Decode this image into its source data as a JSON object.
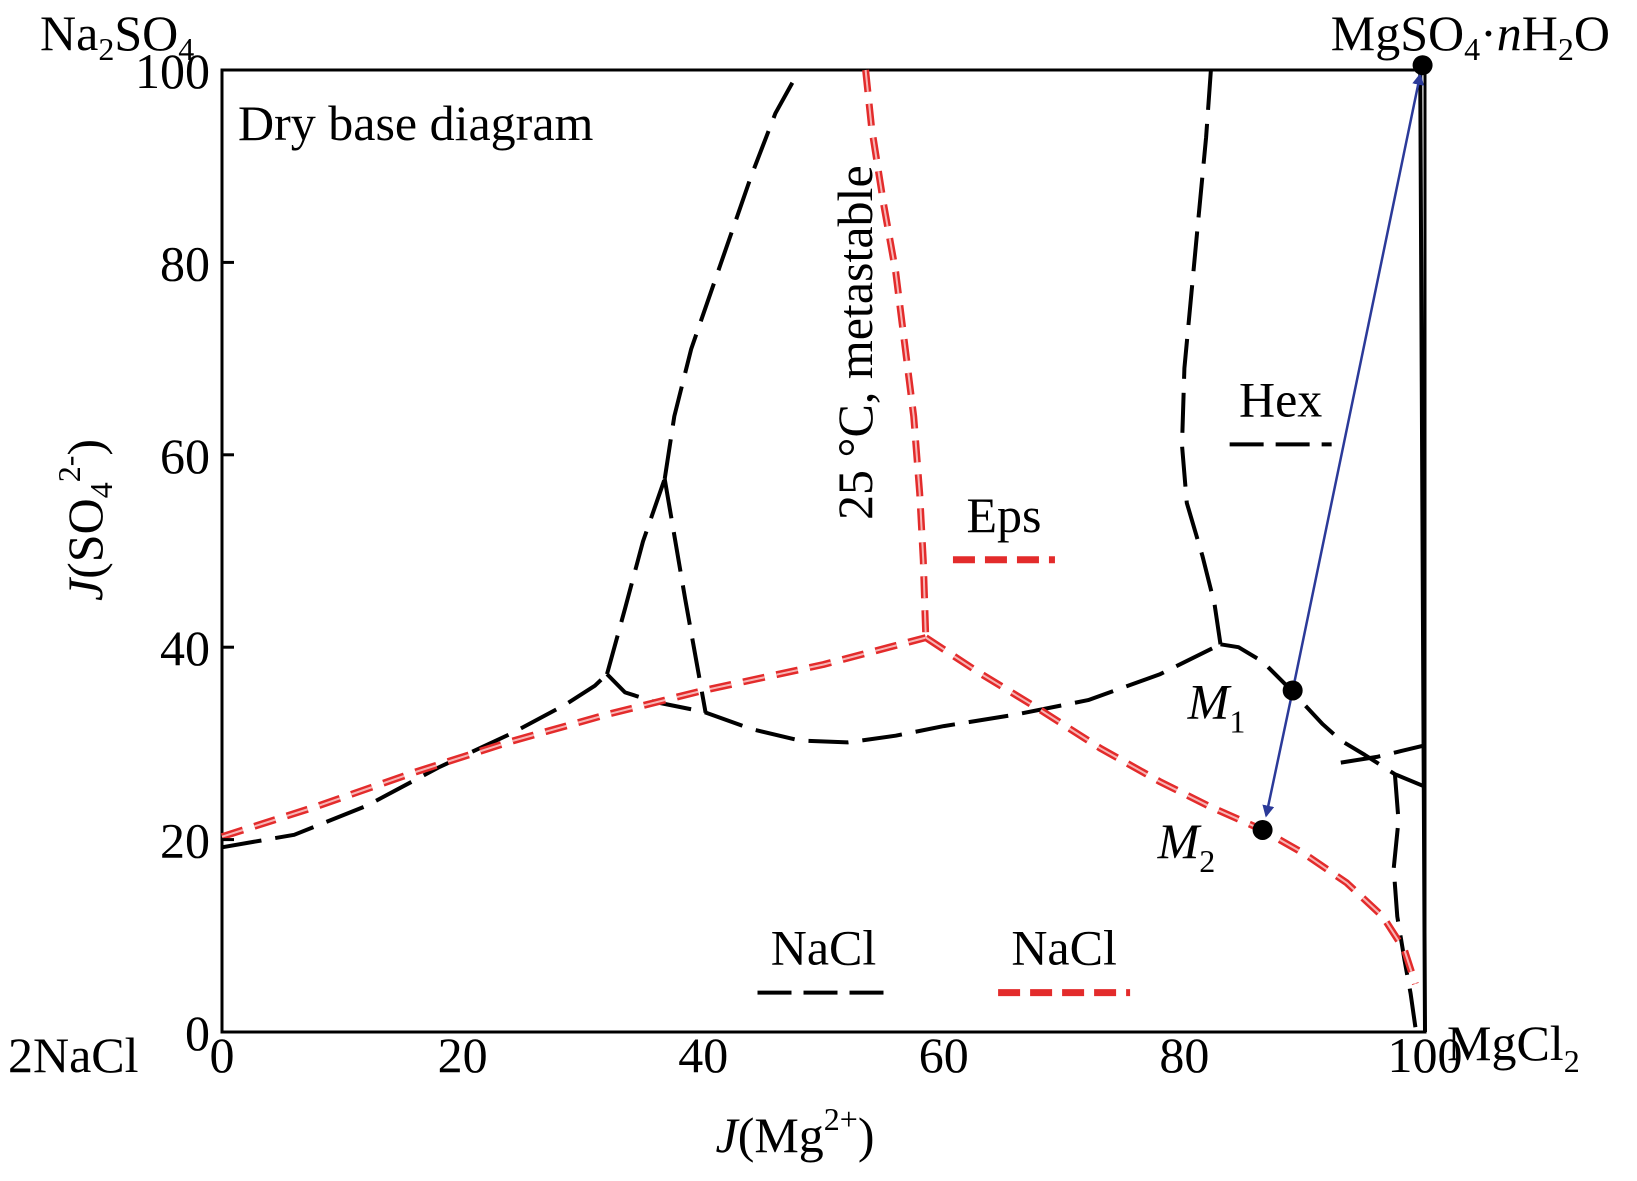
{
  "chart_data": {
    "type": "line",
    "annotation_title": "Dry base diagram",
    "xlabel": {
      "prefix": "J",
      "open": "(Mg",
      "sup": "2+",
      "close": ")"
    },
    "ylabel": {
      "prefix": "J",
      "open": "(SO",
      "sub": "4",
      "sup": "2-",
      "close": ")"
    },
    "xlim": [
      0,
      100
    ],
    "ylim": [
      0,
      100
    ],
    "x_ticks": [
      {
        "value": 0,
        "label": "0"
      },
      {
        "value": 20,
        "label": "20"
      },
      {
        "value": 40,
        "label": "40"
      },
      {
        "value": 60,
        "label": "60"
      },
      {
        "value": 80,
        "label": "80"
      },
      {
        "value": 100,
        "label": "100"
      }
    ],
    "y_ticks": [
      {
        "value": 0,
        "label": "0"
      },
      {
        "value": 20,
        "label": "20"
      },
      {
        "value": 40,
        "label": "40"
      },
      {
        "value": 60,
        "label": "60"
      },
      {
        "value": 80,
        "label": "80"
      },
      {
        "value": 100,
        "label": "100"
      }
    ],
    "corners": {
      "bottom_left": "2NaCl",
      "bottom_right": {
        "main": "MgCl",
        "sub": "2"
      },
      "top_left": {
        "a": "Na",
        "sub1": "2",
        "b": "SO",
        "sub2": "4"
      },
      "top_right": {
        "a": "MgSO",
        "sub1": "4",
        "dot": "·",
        "n": "n",
        "b": "H",
        "sub2": "2",
        "c": "O"
      }
    },
    "rotated_label": "25 °C, metastable",
    "field_labels": [
      {
        "text": "Eps",
        "x": 65,
        "y": 52,
        "color": "#e32b2b"
      },
      {
        "text": "Hex",
        "x": 88,
        "y": 64,
        "color": "#000000"
      },
      {
        "text": "NaCl",
        "x": 50,
        "y": 7,
        "color": "#000000"
      },
      {
        "text": "NaCl",
        "x": 70,
        "y": 7,
        "color": "#e32b2b"
      }
    ],
    "points": [
      {
        "name": "M",
        "sub": "1",
        "x": 89,
        "y": 35.5
      },
      {
        "name": "M",
        "sub": "2",
        "x": 86.5,
        "y": 21
      },
      {
        "name": "",
        "sub": "",
        "x": 99.8,
        "y": 100.5
      }
    ],
    "arrows": [
      {
        "from": [
          89,
          35.5
        ],
        "to": [
          99.6,
          99.5
        ],
        "color": "#2b3a99"
      },
      {
        "from": [
          89,
          35.5
        ],
        "to": [
          86.8,
          22.5
        ],
        "color": "#2b3a99"
      }
    ],
    "series": [
      {
        "style": "black-dashed",
        "color": "#000000",
        "segments": [
          [
            [
              0,
              19.2
            ],
            [
              6,
              20.5
            ],
            [
              12,
              23.5
            ],
            [
              18,
              27.5
            ],
            [
              24,
              31
            ],
            [
              28.5,
              34
            ],
            [
              31,
              36
            ],
            [
              32,
              37.2
            ]
          ],
          [
            [
              32,
              37.2
            ],
            [
              33.5,
              35.3
            ],
            [
              36,
              34.3
            ],
            [
              40,
              33.3
            ],
            [
              44,
              31.5
            ],
            [
              48,
              30.3
            ],
            [
              52,
              30.1
            ],
            [
              56,
              30.8
            ],
            [
              60,
              31.8
            ],
            [
              66,
              33
            ],
            [
              72,
              34.5
            ],
            [
              78,
              37.2
            ],
            [
              83,
              40.3
            ]
          ],
          [
            [
              32,
              37.2
            ],
            [
              33.5,
              44
            ],
            [
              35,
              51
            ],
            [
              36.8,
              57.5
            ]
          ],
          [
            [
              36.8,
              57.5
            ],
            [
              38.5,
              45
            ],
            [
              40.2,
              33.2
            ]
          ],
          [
            [
              36.8,
              57.5
            ],
            [
              37.6,
              64
            ],
            [
              39,
              71
            ],
            [
              41.5,
              80
            ],
            [
              44,
              89
            ],
            [
              46,
              95.5
            ],
            [
              48,
              100
            ]
          ],
          [
            [
              82.2,
              100
            ],
            [
              81.8,
              93
            ],
            [
              81.2,
              85
            ],
            [
              80.6,
              77
            ],
            [
              80,
              69
            ],
            [
              79.8,
              61
            ],
            [
              80.2,
              55
            ],
            [
              81.5,
              49.5
            ],
            [
              82.5,
              44.5
            ],
            [
              83,
              40.3
            ]
          ],
          [
            [
              83,
              40.3
            ],
            [
              84.5,
              40
            ],
            [
              86.5,
              38.5
            ],
            [
              88.5,
              36
            ],
            [
              90,
              34
            ],
            [
              91.5,
              32
            ],
            [
              93,
              30.3
            ],
            [
              95,
              28.8
            ],
            [
              97.5,
              26.8
            ],
            [
              100,
              25.5
            ]
          ],
          [
            [
              93,
              28
            ],
            [
              96,
              28.6
            ],
            [
              98,
              29.2
            ],
            [
              100,
              29.8
            ]
          ],
          [
            [
              97.5,
              26.8
            ],
            [
              97.8,
              22
            ],
            [
              97.4,
              17
            ],
            [
              97.7,
              12
            ],
            [
              98.3,
              7.5
            ],
            [
              98.8,
              4
            ],
            [
              99.2,
              0.5
            ]
          ],
          [
            [
              99.6,
              100.3
            ],
            [
              99.7,
              75
            ],
            [
              99.8,
              50
            ],
            [
              99.9,
              25
            ],
            [
              100,
              0
            ]
          ]
        ]
      },
      {
        "style": "red-dashed",
        "color": "#e32b2b",
        "segments": [
          [
            [
              0,
              20.3
            ],
            [
              8,
              23.5
            ],
            [
              16,
              27
            ],
            [
              24,
              30.2
            ],
            [
              32,
              33
            ],
            [
              40,
              35.5
            ],
            [
              50,
              38.2
            ],
            [
              58.5,
              41
            ]
          ],
          [
            [
              53.5,
              100
            ],
            [
              54,
              94
            ],
            [
              55,
              86
            ],
            [
              56,
              79
            ],
            [
              56.8,
              71
            ],
            [
              57.5,
              64
            ],
            [
              58,
              56
            ],
            [
              58.3,
              49
            ],
            [
              58.5,
              41
            ]
          ],
          [
            [
              58.5,
              41
            ],
            [
              63,
              37.3
            ],
            [
              68,
              33.5
            ],
            [
              73,
              29.5
            ],
            [
              78,
              26
            ],
            [
              82,
              23.5
            ],
            [
              86.5,
              21
            ],
            [
              90,
              18.5
            ],
            [
              93.5,
              15.5
            ],
            [
              96.5,
              12
            ],
            [
              98.3,
              8.5
            ],
            [
              99.2,
              5
            ]
          ]
        ]
      }
    ]
  }
}
